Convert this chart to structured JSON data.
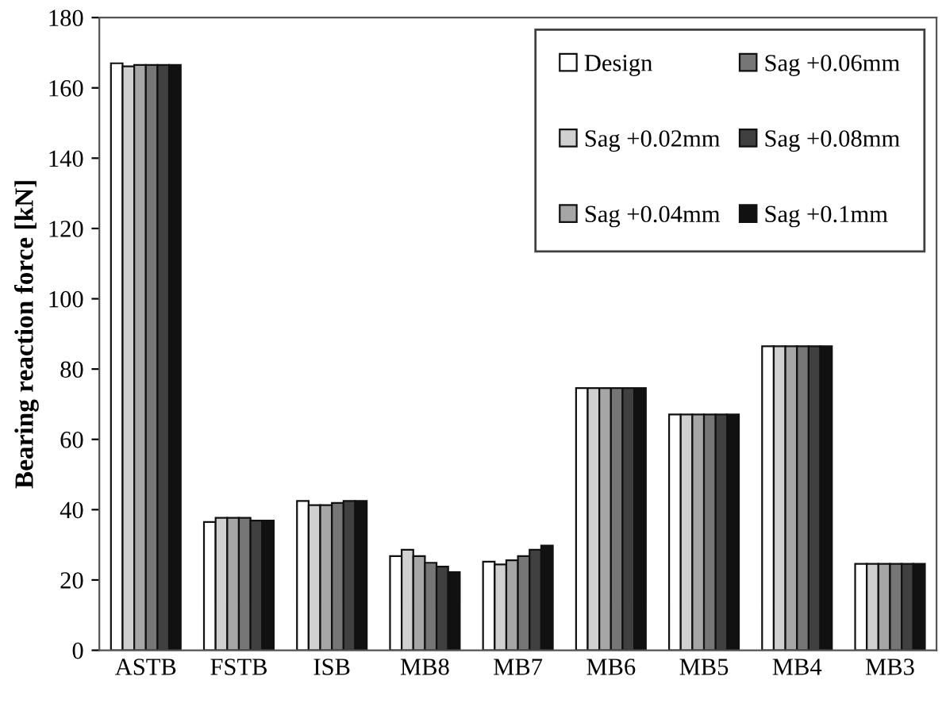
{
  "chart_data": {
    "type": "bar",
    "ylabel": "Bearing reaction force [kN]",
    "categories": [
      "ASTB",
      "FSTB",
      "ISB",
      "MB8",
      "MB7",
      "MB6",
      "MB5",
      "MB4",
      "MB3"
    ],
    "series": [
      {
        "name": "Design",
        "color": "#ffffff",
        "values": [
          167,
          36.5,
          42.5,
          26.8,
          25.2,
          74.6,
          67.1,
          86.5,
          24.6
        ]
      },
      {
        "name": "Sag +0.02mm",
        "color": "#d0d0d0",
        "values": [
          166.1,
          37.7,
          41.3,
          28.6,
          24.4,
          74.6,
          67.1,
          86.5,
          24.6
        ]
      },
      {
        "name": "Sag +0.04mm",
        "color": "#a6a6a6",
        "values": [
          166.5,
          37.7,
          41.3,
          26.8,
          25.6,
          74.6,
          67.1,
          86.5,
          24.6
        ]
      },
      {
        "name": "Sag +0.06mm",
        "color": "#767676",
        "values": [
          166.5,
          37.7,
          41.9,
          24.9,
          26.8,
          74.6,
          67.1,
          86.5,
          24.6
        ]
      },
      {
        "name": "Sag +0.08mm",
        "color": "#404040",
        "values": [
          166.5,
          36.9,
          42.5,
          23.8,
          28.6,
          74.6,
          67.1,
          86.5,
          24.6
        ]
      },
      {
        "name": "Sag +0.1mm",
        "color": "#111111",
        "values": [
          166.5,
          36.9,
          42.5,
          22.2,
          29.8,
          74.6,
          67.1,
          86.5,
          24.6
        ]
      }
    ],
    "ylim": [
      0,
      180
    ],
    "yticks": [
      0,
      20,
      40,
      60,
      80,
      100,
      120,
      140,
      160,
      180
    ],
    "grid": false,
    "legend": "top right"
  }
}
